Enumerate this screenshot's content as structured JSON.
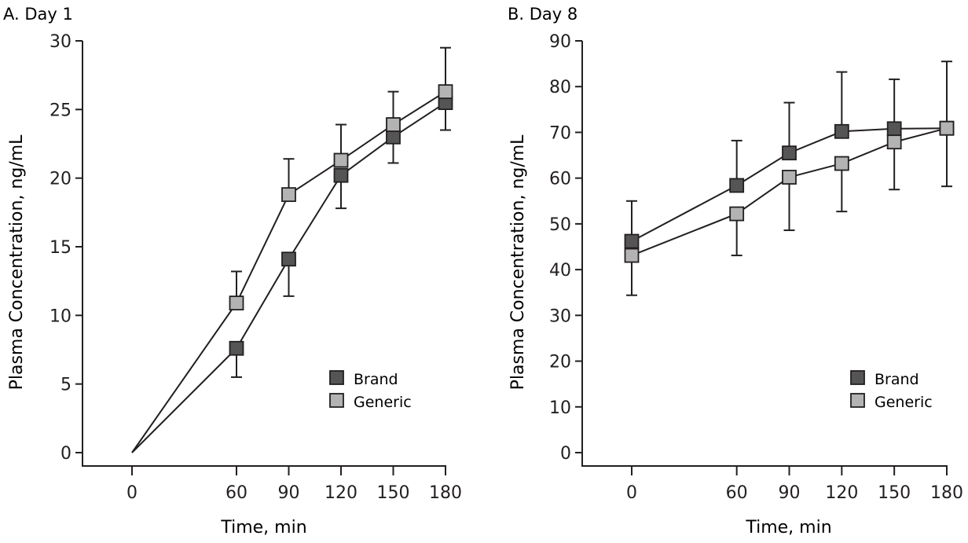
{
  "colors": {
    "brand": "#555555",
    "generic": "#b3b3b3",
    "line": "#231f20"
  },
  "chart_data": [
    {
      "id": "day1",
      "type": "line",
      "title": "A. Day 1",
      "xlabel": "Time, min",
      "ylabel": "Plasma Concentration, ng/mL",
      "x": [
        0,
        60,
        90,
        120,
        150,
        180
      ],
      "xticks": [
        "0",
        "60",
        "90",
        "120",
        "150",
        "180"
      ],
      "yticks": [
        "0",
        "5",
        "10",
        "15",
        "20",
        "25",
        "30"
      ],
      "ylim": [
        0,
        30
      ],
      "xlim": [
        0,
        180
      ],
      "grid": false,
      "legend_position": "bottom-right",
      "series": [
        {
          "name": "Brand",
          "values": [
            0,
            7.6,
            14.1,
            20.2,
            23.0,
            25.5
          ],
          "error_lower": [
            null,
            5.5,
            11.4,
            17.8,
            21.1,
            23.5
          ],
          "error_upper": [
            null,
            null,
            null,
            null,
            null,
            null
          ]
        },
        {
          "name": "Generic",
          "values": [
            0,
            10.9,
            18.8,
            21.3,
            23.9,
            26.3
          ],
          "error_lower": [
            null,
            null,
            null,
            null,
            null,
            null
          ],
          "error_upper": [
            null,
            13.2,
            21.4,
            23.9,
            26.3,
            29.5
          ]
        }
      ]
    },
    {
      "id": "day8",
      "type": "line",
      "title": "B. Day 8",
      "xlabel": "Time, min",
      "ylabel": "Plasma Concentration, ng/mL",
      "x": [
        0,
        60,
        90,
        120,
        150,
        180
      ],
      "xticks": [
        "0",
        "60",
        "90",
        "120",
        "150",
        "180"
      ],
      "yticks": [
        "0",
        "10",
        "20",
        "30",
        "40",
        "50",
        "60",
        "70",
        "80",
        "90"
      ],
      "ylim": [
        0,
        90
      ],
      "xlim": [
        0,
        180
      ],
      "grid": false,
      "legend_position": "bottom-right",
      "series": [
        {
          "name": "Brand",
          "values": [
            46.2,
            58.4,
            65.5,
            70.2,
            70.8,
            70.9
          ],
          "error_lower": [
            null,
            null,
            null,
            null,
            null,
            null
          ],
          "error_upper": [
            55.0,
            68.2,
            76.5,
            83.2,
            81.6,
            85.5
          ]
        },
        {
          "name": "Generic",
          "values": [
            43.1,
            52.2,
            60.2,
            63.2,
            67.9,
            70.9
          ],
          "error_lower": [
            34.4,
            43.1,
            48.6,
            52.7,
            57.5,
            58.2
          ],
          "error_upper": [
            null,
            null,
            null,
            null,
            null,
            null
          ]
        }
      ]
    }
  ]
}
